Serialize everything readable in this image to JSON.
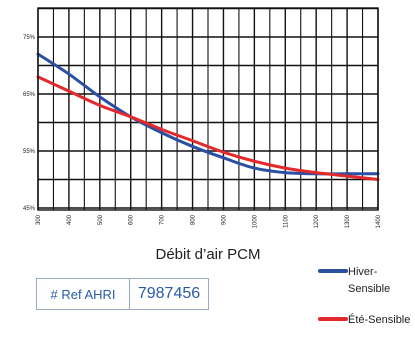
{
  "chart_data": {
    "type": "line",
    "title": "",
    "xlabel": "Débit d’air PCM",
    "ylabel": "",
    "x": [
      300,
      400,
      500,
      600,
      700,
      800,
      900,
      1000,
      1100,
      1200,
      1300,
      1400
    ],
    "x_tick_labels": [
      "300",
      "400",
      "500",
      "600",
      "700",
      "800",
      "900",
      "1000",
      "1100",
      "1200",
      "1300",
      "1400"
    ],
    "y_tick_labels": [
      "75%",
      "65%",
      "55%",
      "45%"
    ],
    "ylim": [
      45,
      80
    ],
    "xlim": [
      300,
      1400
    ],
    "grid": true,
    "legend_position": "bottom-right",
    "series": [
      {
        "name": "Hiver-Sensible",
        "color": "#2a4fa3",
        "values": [
          72,
          68.5,
          64.5,
          61,
          58.2,
          55.8,
          53.8,
          52,
          51.2,
          51,
          51,
          51
        ]
      },
      {
        "name": "Été-Sensible",
        "color": "#e3292b",
        "values": [
          68,
          65.5,
          63,
          61,
          58.8,
          56.8,
          54.8,
          53.2,
          52,
          51.2,
          50.6,
          50
        ]
      }
    ]
  },
  "ref": {
    "label": "# Ref AHRI",
    "value": "7987456"
  }
}
